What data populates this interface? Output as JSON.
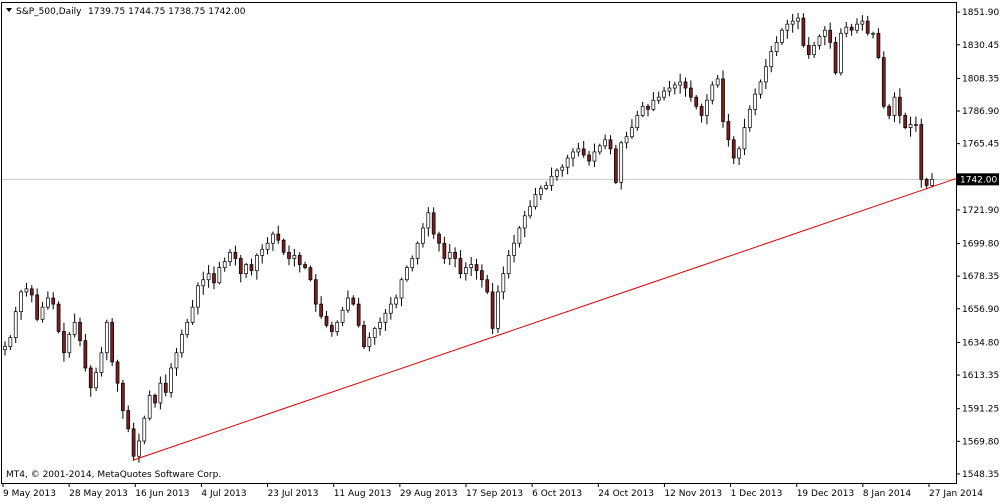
{
  "header": {
    "dropdown_arrow": "triangle-down",
    "symbol": "S&P_500,Daily",
    "ohlc": "1739.75 1744.75 1738.75 1742.00"
  },
  "footer": {
    "copyright": "MT4, © 2001-2014, MetaQuotes Software Corp."
  },
  "colors": {
    "background": "#ffffff",
    "frame": "#000000",
    "bull_fill": "#ffffff",
    "bear_fill": "#7a1e1e",
    "wick": "#000000",
    "trendline": "#e00000",
    "price_line": "#c8c8c8",
    "price_label_bg": "#000000",
    "price_label_text": "#ffffff"
  },
  "chart_data": {
    "type": "candlestick",
    "title": "S&P_500,Daily",
    "ylim": [
      1542.4,
      1857.9
    ],
    "y_ticks": [
      "1851.90",
      "1830.45",
      "1808.35",
      "1786.90",
      "1765.45",
      "1742.00",
      "1721.90",
      "1699.80",
      "1678.35",
      "1656.90",
      "1634.80",
      "1613.35",
      "1591.25",
      "1569.80",
      "1548.35"
    ],
    "x_ticks": [
      "9 May 2013",
      "28 May 2013",
      "16 Jun 2013",
      "4 Jul 2013",
      "23 Jul 2013",
      "11 Aug 2013",
      "29 Aug 2013",
      "17 Sep 2013",
      "6 Oct 2013",
      "24 Oct 2013",
      "12 Nov 2013",
      "1 Dec 2013",
      "19 Dec 2013",
      "8 Jan 2014",
      "27 Jan 2014"
    ],
    "current_price": 1742.0,
    "trendline": {
      "from": 1557.5,
      "to": 1742.5
    },
    "closes": [
      1632,
      1638,
      1655,
      1668,
      1670,
      1666,
      1650,
      1658,
      1664,
      1660,
      1642,
      1628,
      1640,
      1648,
      1636,
      1618,
      1605,
      1615,
      1628,
      1648,
      1622,
      1608,
      1590,
      1578,
      1560,
      1570,
      1585,
      1600,
      1595,
      1608,
      1602,
      1618,
      1628,
      1640,
      1648,
      1658,
      1672,
      1676,
      1680,
      1674,
      1684,
      1688,
      1694,
      1690,
      1680,
      1686,
      1682,
      1692,
      1696,
      1700,
      1706,
      1702,
      1694,
      1690,
      1692,
      1686,
      1684,
      1676,
      1660,
      1652,
      1646,
      1642,
      1648,
      1656,
      1664,
      1660,
      1646,
      1632,
      1638,
      1644,
      1648,
      1654,
      1660,
      1664,
      1676,
      1684,
      1690,
      1700,
      1710,
      1720,
      1706,
      1700,
      1690,
      1694,
      1690,
      1680,
      1684,
      1686,
      1682,
      1676,
      1668,
      1644,
      1668,
      1680,
      1692,
      1700,
      1710,
      1718,
      1724,
      1732,
      1736,
      1738,
      1744,
      1748,
      1750,
      1756,
      1760,
      1762,
      1758,
      1754,
      1760,
      1764,
      1768,
      1762,
      1740,
      1766,
      1770,
      1776,
      1784,
      1790,
      1788,
      1794,
      1796,
      1800,
      1802,
      1804,
      1806,
      1802,
      1796,
      1790,
      1784,
      1794,
      1804,
      1808,
      1780,
      1768,
      1756,
      1762,
      1776,
      1788,
      1798,
      1806,
      1816,
      1826,
      1832,
      1840,
      1844,
      1846,
      1848,
      1830,
      1824,
      1830,
      1836,
      1840,
      1832,
      1812,
      1838,
      1842,
      1840,
      1844,
      1846,
      1838,
      1838,
      1822,
      1790,
      1784,
      1796,
      1784,
      1776,
      1778,
      1778,
      1742,
      1738,
      1742
    ]
  }
}
